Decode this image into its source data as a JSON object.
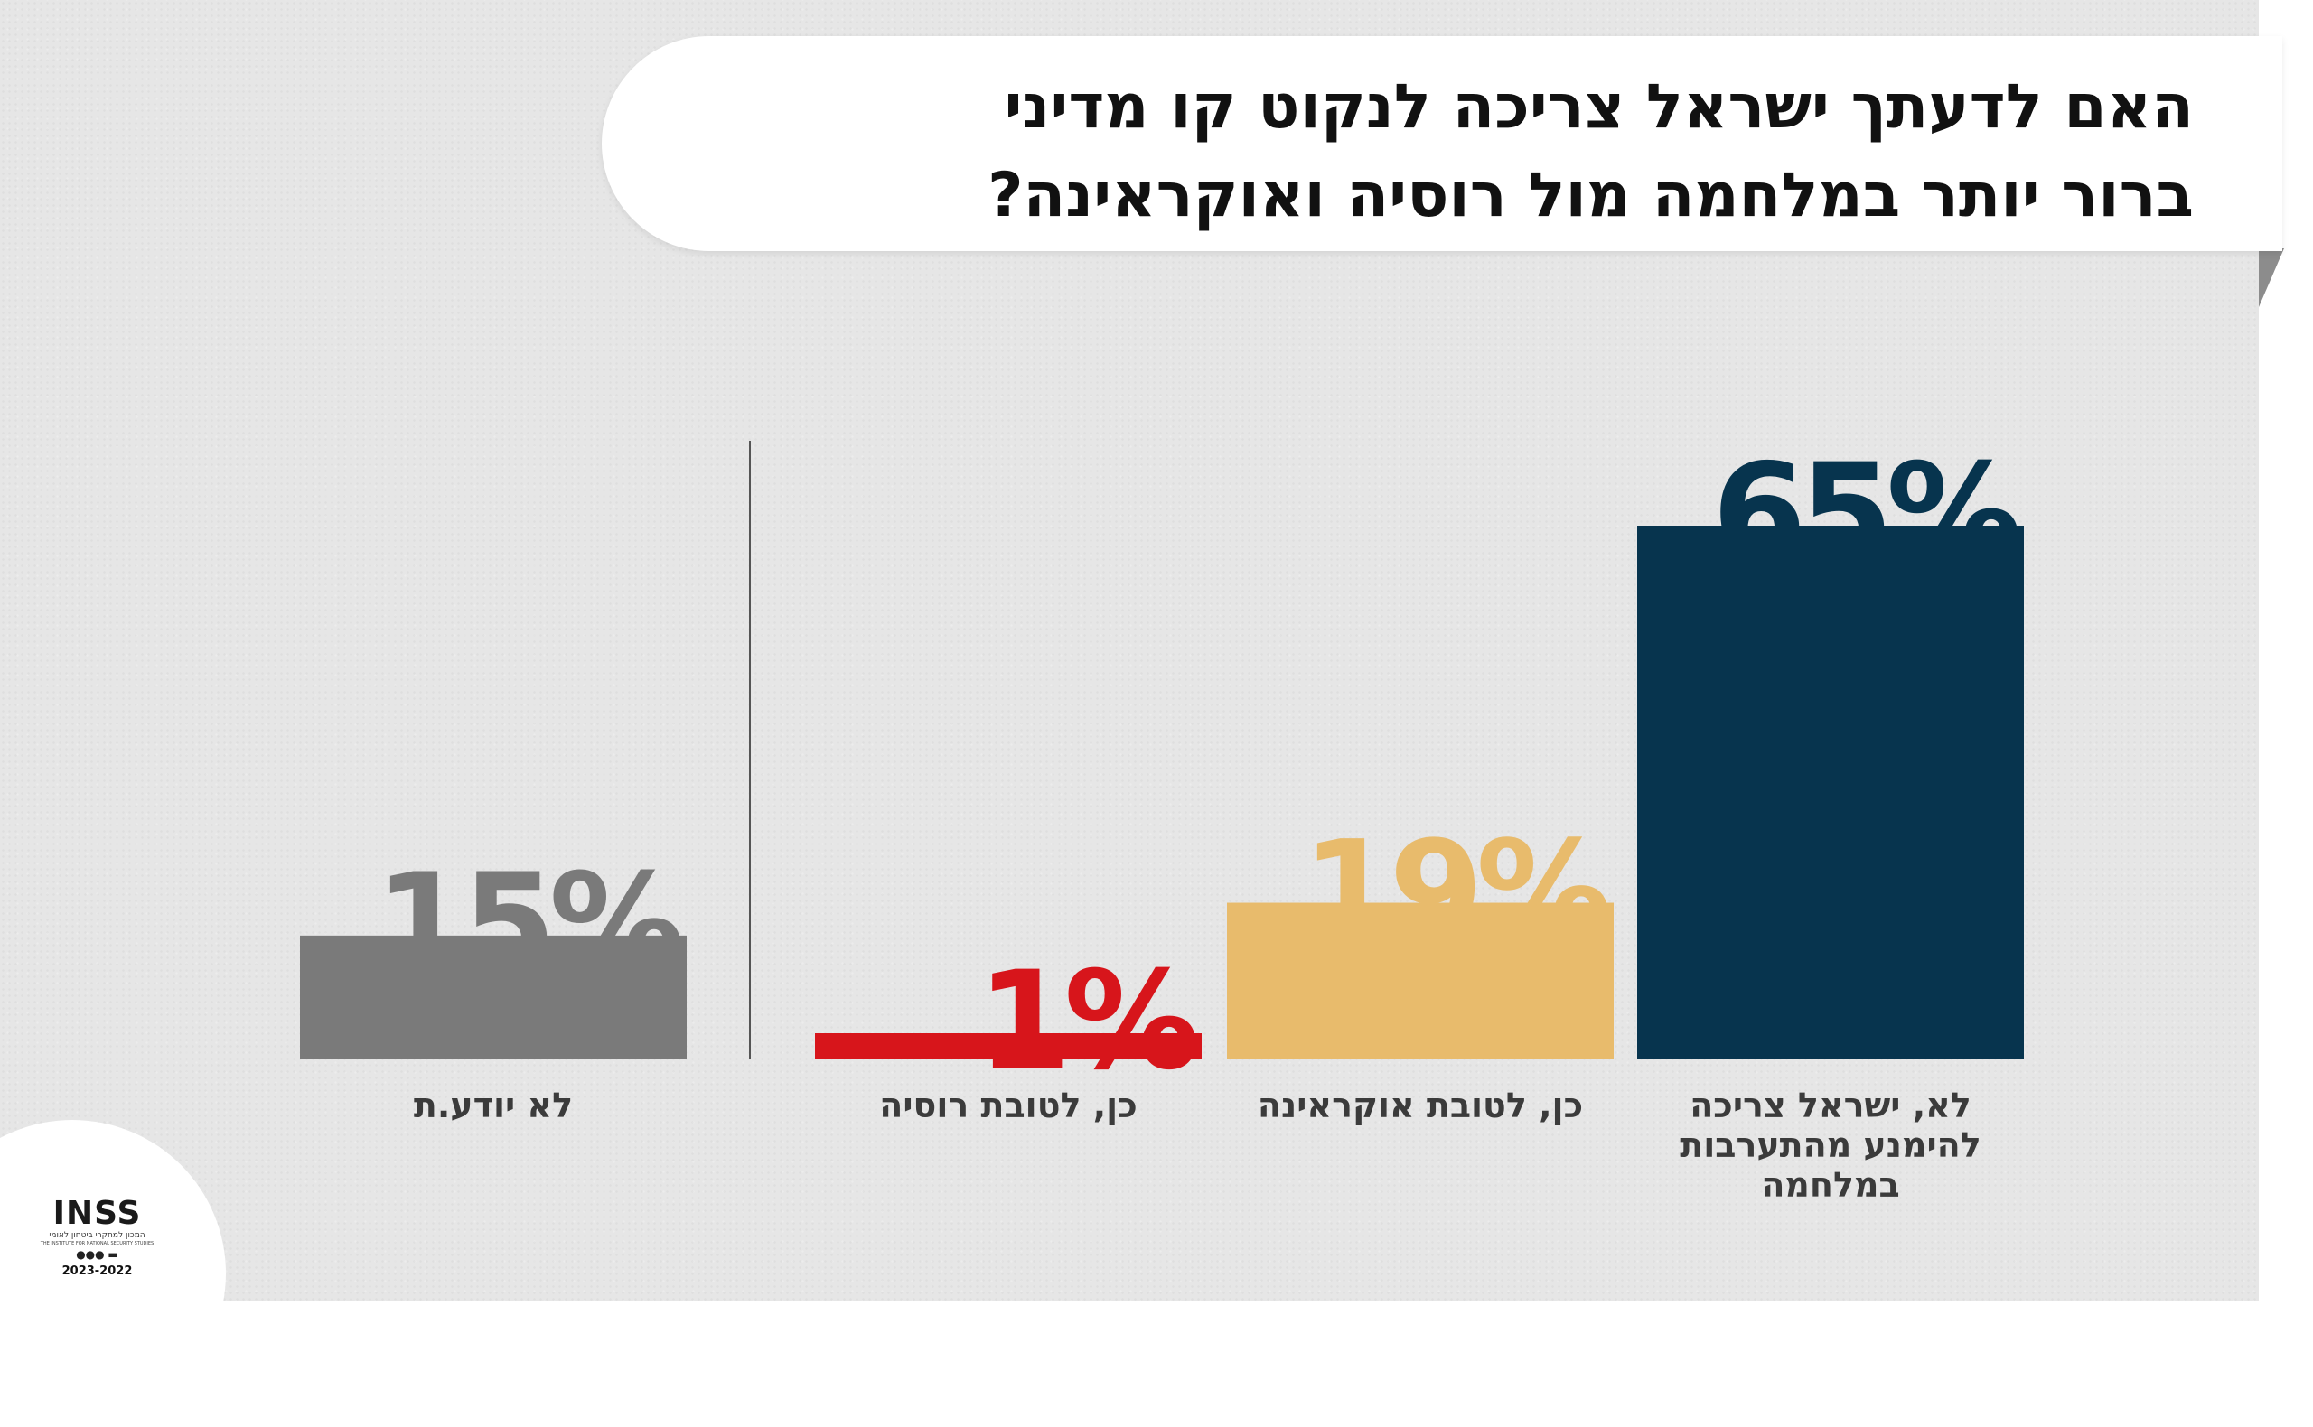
{
  "title": "האם  לדעתך ישראל צריכה לנקוט קו מדיני\nברור יותר במלחמה מול רוסיה ואוקראינה?",
  "colors": {
    "background": "#e6e6e6",
    "no_stay_out": "#07344e",
    "yes_ukraine": "#e8bb6c",
    "yes_russia": "#d7151b",
    "dont_know": "#7a7a7a",
    "divider": "#555555"
  },
  "chart_data": {
    "type": "bar",
    "unit": "%",
    "categories": [
      "לא, ישראל צריכה\nלהימנע מהתערבות\nבמלחמה",
      "כן, לטובת אוקראינה",
      "כן, לטובת רוסיה",
      "לא יודע.ת"
    ],
    "values": [
      65,
      19,
      1,
      15
    ],
    "value_labels": [
      "65%",
      "19%",
      "1%",
      "15%"
    ],
    "colors": [
      "#07344e",
      "#e8bb6c",
      "#d7151b",
      "#7a7a7a"
    ],
    "ylim": [
      0,
      65
    ],
    "grid": false,
    "legend": "none"
  },
  "logo": {
    "name": "INSS",
    "subtitle": "המכון למחקרי ביטחון לאומי",
    "subtitle_en": "THE INSTITUTE FOR NATIONAL SECURITY STUDIES",
    "years": "2023-2022",
    "icon": "inss-logo-icon"
  }
}
